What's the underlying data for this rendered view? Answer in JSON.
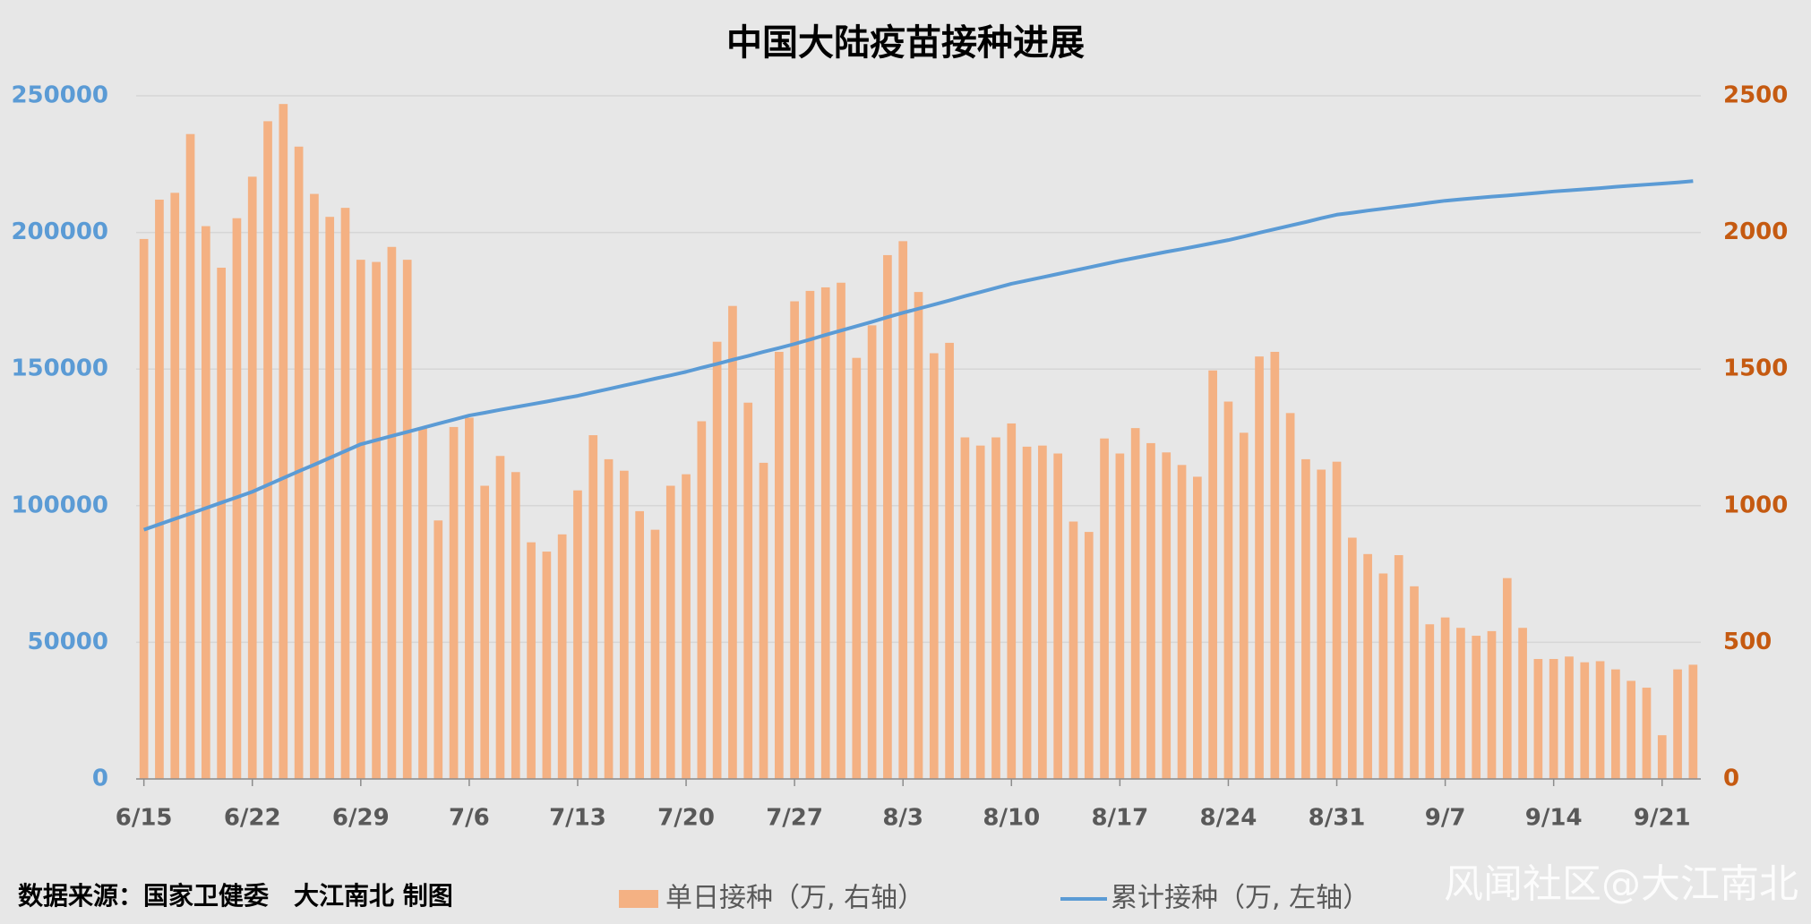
{
  "chart_data": {
    "type": "combo",
    "title": "中国大陆疫苗接种进展",
    "source": "数据来源：国家卫健委　大江南北 制图",
    "watermark": "风闻社区@大江南北",
    "categories": [
      "6/15",
      null,
      null,
      null,
      null,
      null,
      null,
      "6/22",
      null,
      null,
      null,
      null,
      null,
      null,
      "6/29",
      null,
      null,
      null,
      null,
      null,
      null,
      "7/6",
      null,
      null,
      null,
      null,
      null,
      null,
      "7/13",
      null,
      null,
      null,
      null,
      null,
      null,
      "7/20",
      null,
      null,
      null,
      null,
      null,
      null,
      "7/27",
      null,
      null,
      null,
      null,
      null,
      null,
      "8/3",
      null,
      null,
      null,
      null,
      null,
      null,
      "8/10",
      null,
      null,
      null,
      null,
      null,
      null,
      "8/17",
      null,
      null,
      null,
      null,
      null,
      null,
      "8/24",
      null,
      null,
      null,
      null,
      null,
      null,
      "8/31",
      null,
      null,
      null,
      null,
      null,
      null,
      "9/7",
      null,
      null,
      null,
      null,
      null,
      null,
      "9/14",
      null,
      null,
      null,
      null,
      null,
      null,
      "9/21",
      null,
      null
    ],
    "series": [
      {
        "name": "单日接种（万, 右轴）",
        "type": "bar",
        "axis": "y2",
        "color": "#f4b183",
        "values": [
          1976,
          2120,
          2145,
          2360,
          2023,
          1871,
          2052,
          2204,
          2407,
          2470,
          2314,
          2141,
          2057,
          2090,
          1900,
          1892,
          1947,
          1900,
          1284,
          946,
          1288,
          1322,
          1073,
          1182,
          1123,
          866,
          832,
          895,
          1056,
          1258,
          1170,
          1128,
          980,
          912,
          1073,
          1115,
          1309,
          1600,
          1731,
          1377,
          1157,
          1563,
          1748,
          1786,
          1799,
          1816,
          1541,
          1660,
          1917,
          1968,
          1782,
          1558,
          1596,
          1250,
          1220,
          1250,
          1301,
          1216,
          1220,
          1191,
          942,
          904,
          1246,
          1191,
          1284,
          1229,
          1195,
          1149,
          1106,
          1495,
          1381,
          1267,
          1546,
          1563,
          1339,
          1170,
          1132,
          1161,
          883,
          823,
          752,
          819,
          705,
          566,
          591,
          553,
          524,
          541,
          735,
          553,
          439,
          439,
          448,
          427,
          431,
          401,
          359,
          334,
          160,
          401,
          418
        ]
      },
      {
        "name": "累计接种（万, 左轴）",
        "type": "line",
        "axis": "y",
        "color": "#5b9bd5",
        "values": [
          91200,
          93200,
          95200,
          97100,
          99100,
          101100,
          103100,
          105100,
          107600,
          110100,
          112600,
          115000,
          117500,
          120000,
          122500,
          124000,
          125500,
          127000,
          128500,
          130000,
          131500,
          133000,
          134000,
          135100,
          136100,
          137100,
          138100,
          139200,
          140200,
          141500,
          142700,
          144000,
          145200,
          146500,
          147700,
          149000,
          150500,
          151900,
          153400,
          154800,
          156300,
          157700,
          159200,
          160800,
          162500,
          164100,
          165700,
          167300,
          169000,
          170600,
          172100,
          173600,
          175100,
          176700,
          178200,
          179700,
          181200,
          182400,
          183600,
          184800,
          186000,
          187200,
          188400,
          189600,
          190700,
          191800,
          192900,
          193900,
          195000,
          196100,
          197200,
          198500,
          199900,
          201200,
          202500,
          203800,
          205200,
          206500,
          207200,
          208000,
          208700,
          209400,
          210100,
          210900,
          211600,
          212100,
          212600,
          213100,
          213500,
          214000,
          214500,
          215000,
          215400,
          215800,
          216200,
          216700,
          217100,
          217500,
          217900,
          218300,
          218800
        ]
      }
    ],
    "ylim": [
      0,
      250000
    ],
    "yticks": [
      0,
      50000,
      100000,
      150000,
      200000,
      250000
    ],
    "y2lim": [
      0,
      2500
    ],
    "y2ticks": [
      0,
      500,
      1000,
      1500,
      2000,
      2500
    ],
    "grid": true
  }
}
